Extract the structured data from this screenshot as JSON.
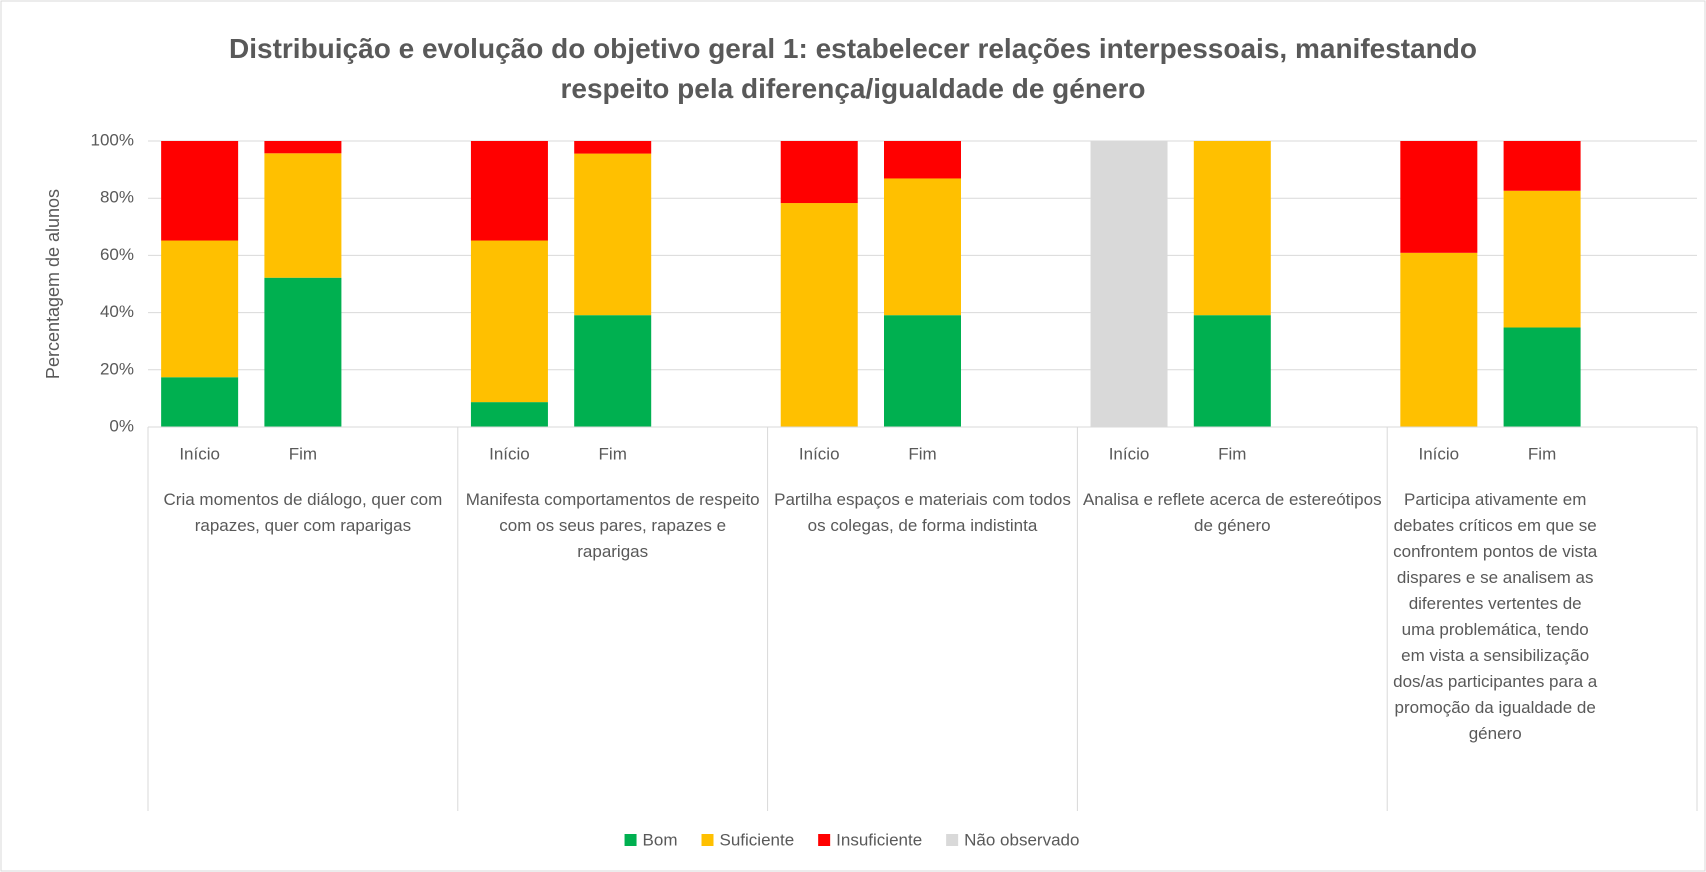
{
  "chart_data": {
    "type": "stacked_bar",
    "title": "Distribuição e evolução do objetivo geral 1: estabelecer relações interpessoais, manifestando respeito pela diferença/igualdade de género",
    "y_label": "Percentagem de alunos",
    "categories": [
      "Início",
      "Fim",
      "Início",
      "Fim",
      "Início",
      "Fim",
      "Início",
      "Fim",
      "Início",
      "Fim"
    ],
    "groups": [
      "Cria momentos de diálogo, quer com rapazes, quer com raparigas",
      "Manifesta comportamentos de respeito com os seus pares, rapazes e raparigas",
      "Partilha espaços e materiais com todos os colegas, de forma indistinta",
      "Analisa e reflete acerca de estereótipos de género",
      "Participa ativamente em debates críticos em que se confrontem pontos de vista dispares e se analisem as diferentes vertentes de uma problemática, tendo em vista a sensibilização dos/as participantes para a promoção da igualdade de género"
    ],
    "series": [
      {
        "name": "Bom",
        "color": "#00b050",
        "values": [
          17.4,
          52.2,
          8.7,
          39.1,
          0,
          39.1,
          0,
          39.1,
          0,
          34.8
        ]
      },
      {
        "name": "Suficiente",
        "color": "#ffc000",
        "values": [
          47.8,
          43.5,
          56.5,
          56.5,
          78.3,
          47.8,
          0,
          60.9,
          60.9,
          47.8
        ]
      },
      {
        "name": "Insuficiente",
        "color": "#ff0000",
        "values": [
          34.8,
          4.3,
          34.8,
          4.4,
          21.7,
          13.1,
          0,
          0,
          39.1,
          17.4
        ]
      },
      {
        "name": "Não observado",
        "color": "#d9d9d9",
        "values": [
          0,
          0,
          0,
          0,
          0,
          0,
          100,
          0,
          0,
          0
        ]
      }
    ],
    "ylim": [
      0,
      100
    ],
    "yticks": [
      {
        "value": 0,
        "label": "0%"
      },
      {
        "value": 20,
        "label": "20%"
      },
      {
        "value": 40,
        "label": "40%"
      },
      {
        "value": 60,
        "label": "60%"
      },
      {
        "value": 80,
        "label": "80%"
      },
      {
        "value": 100,
        "label": "100%"
      }
    ],
    "grid": true,
    "legend": "bottom"
  }
}
